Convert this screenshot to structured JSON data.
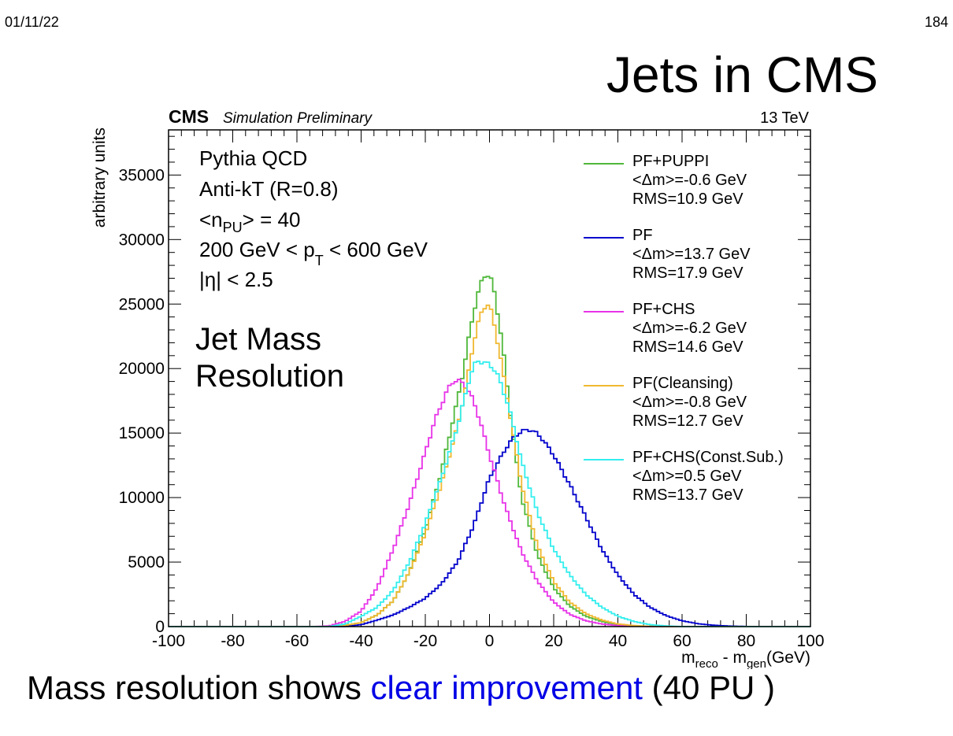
{
  "header": {
    "date": "01/11/22",
    "page": "184"
  },
  "slide_title": "Jets in CMS",
  "caption": {
    "before": "Mass resolution shows ",
    "highlight": "clear improvement",
    "after": " (40 PU )"
  },
  "colors": {
    "highlight": "#0000e6"
  },
  "chart_data": {
    "type": "line",
    "style": "step-histogram",
    "header_left_bold": "CMS",
    "header_left_italic": "Simulation Preliminary",
    "header_right": "13 TeV",
    "ylabel": "arbitrary units",
    "xlabel_parts": [
      "m",
      "reco",
      " - m",
      "gen",
      "(GeV)"
    ],
    "xlim": [
      -100,
      100
    ],
    "ylim": [
      0,
      38500
    ],
    "xticks": [
      -100,
      -80,
      -60,
      -40,
      -20,
      0,
      20,
      40,
      60,
      80,
      100
    ],
    "yticks": [
      0,
      5000,
      10000,
      15000,
      20000,
      25000,
      30000,
      35000
    ],
    "annotations": {
      "generator": "Pythia QCD",
      "algorithm": "Anti-kT (R=0.8)",
      "npu": [
        "<n",
        "PU",
        "> = 40"
      ],
      "pt": [
        "200 GeV < p",
        "T",
        " < 600 GeV"
      ],
      "eta": "|η| < 2.5",
      "big_line1": "Jet Mass",
      "big_line2": "Resolution"
    },
    "legend_position": "right",
    "series": [
      {
        "name": "PF+PUPPI",
        "mean_text": "<Δm>=-0.6 GeV",
        "rms_text": "RMS=10.9 GeV",
        "color": "#4fb83a",
        "x": [
          -50,
          -45,
          -40,
          -35,
          -30,
          -25,
          -20,
          -15,
          -10,
          -8,
          -6,
          -4,
          -2,
          -1,
          0,
          1,
          2,
          4,
          6,
          8,
          10,
          15,
          20,
          25,
          30,
          35,
          40,
          45,
          50,
          55
        ],
        "values": [
          0,
          100,
          300,
          900,
          2000,
          4200,
          7500,
          12000,
          17500,
          20000,
          23000,
          25500,
          27000,
          27400,
          27200,
          26500,
          25200,
          22000,
          17500,
          13500,
          10000,
          5500,
          3000,
          1600,
          800,
          400,
          150,
          50,
          20,
          0
        ]
      },
      {
        "name": "PF",
        "mean_text": "<Δm>=13.7 GeV",
        "rms_text": "RMS=17.9 GeV",
        "color": "#0000cc",
        "x": [
          -45,
          -40,
          -35,
          -30,
          -25,
          -20,
          -15,
          -10,
          -5,
          0,
          5,
          8,
          10,
          12,
          14,
          16,
          20,
          25,
          30,
          35,
          40,
          45,
          50,
          55,
          60,
          65,
          70,
          75,
          80,
          85
        ],
        "values": [
          0,
          150,
          500,
          900,
          1500,
          2200,
          3300,
          5000,
          7800,
          11500,
          13800,
          14800,
          15100,
          15300,
          15100,
          14700,
          13300,
          11000,
          8500,
          6000,
          4000,
          2500,
          1500,
          850,
          450,
          220,
          100,
          40,
          10,
          0
        ]
      },
      {
        "name": "PF+CHS",
        "mean_text": "<Δm>=-6.2 GeV",
        "rms_text": "RMS=14.6 GeV",
        "color": "#e833e8",
        "x": [
          -55,
          -50,
          -45,
          -40,
          -35,
          -30,
          -25,
          -20,
          -17,
          -15,
          -13,
          -11,
          -9,
          -7,
          -5,
          -3,
          0,
          5,
          10,
          15,
          20,
          25,
          30,
          35,
          40,
          45,
          50
        ],
        "values": [
          0,
          50,
          400,
          1200,
          3000,
          6000,
          9500,
          13500,
          16000,
          17200,
          18400,
          19100,
          19000,
          18500,
          17500,
          16000,
          13300,
          9200,
          5800,
          3500,
          1900,
          950,
          450,
          200,
          80,
          30,
          0
        ]
      },
      {
        "name": "PF(Cleansing)",
        "mean_text": "<Δm>=-0.8 GeV",
        "rms_text": "RMS=12.7 GeV",
        "color": "#f0b830",
        "x": [
          -50,
          -45,
          -40,
          -35,
          -30,
          -25,
          -20,
          -15,
          -10,
          -7,
          -5,
          -3,
          -1,
          0,
          1,
          3,
          5,
          8,
          10,
          15,
          20,
          25,
          30,
          35,
          40,
          45,
          50,
          55
        ],
        "values": [
          0,
          100,
          300,
          900,
          2000,
          4200,
          7200,
          11000,
          15500,
          19000,
          22000,
          24000,
          25100,
          24800,
          24000,
          21500,
          18500,
          14000,
          11000,
          6200,
          3500,
          1900,
          1000,
          500,
          200,
          80,
          20,
          0
        ]
      },
      {
        "name": "PF+CHS(Const.Sub.)",
        "mean_text": "<Δm>=0.5 GeV",
        "rms_text": "RMS=13.7 GeV",
        "color": "#33eeee",
        "x": [
          -50,
          -45,
          -40,
          -35,
          -30,
          -25,
          -20,
          -15,
          -10,
          -8,
          -6,
          -4,
          -2,
          0,
          2,
          4,
          6,
          8,
          10,
          15,
          20,
          25,
          30,
          35,
          40,
          45,
          50,
          55,
          60
        ],
        "values": [
          0,
          200,
          800,
          1500,
          2800,
          5000,
          8000,
          11500,
          15500,
          17500,
          19500,
          20600,
          20500,
          20300,
          19800,
          18500,
          17000,
          15000,
          12800,
          8800,
          6000,
          4000,
          2500,
          1500,
          800,
          400,
          150,
          50,
          0
        ]
      }
    ]
  }
}
